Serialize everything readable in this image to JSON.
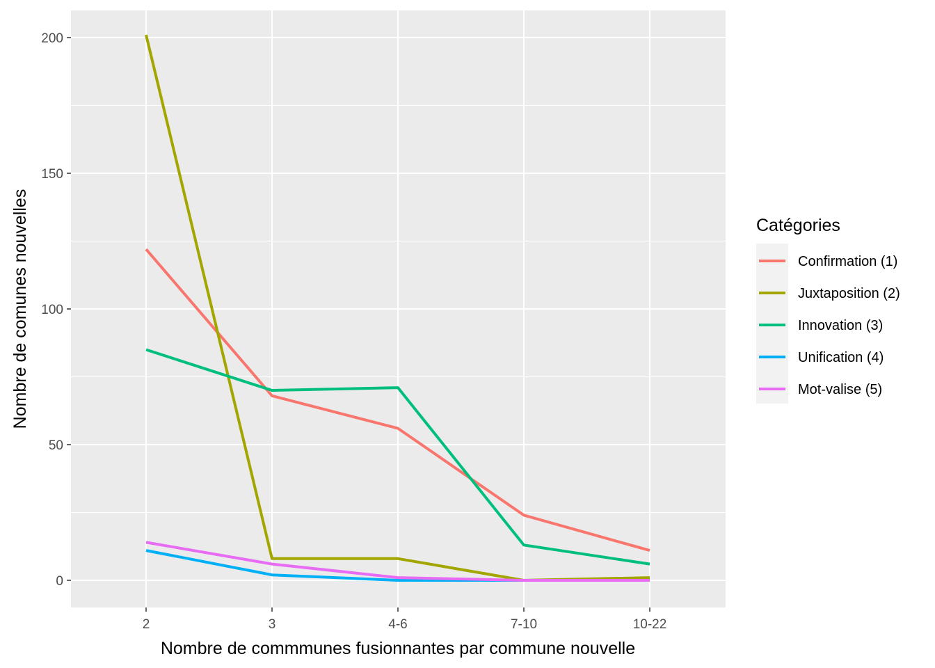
{
  "chart_data": {
    "type": "line",
    "title": "",
    "xlabel": "Nombre de commmunes fusionnantes par commune nouvelle",
    "ylabel": "Nombre de comunes nouvelles",
    "categories": [
      "2",
      "3",
      "4-6",
      "7-10",
      "10-22"
    ],
    "ylim": [
      -10,
      210
    ],
    "yticks": [
      0,
      50,
      100,
      150,
      200
    ],
    "grid": true,
    "legend": {
      "title": "Catégories",
      "placement": "right"
    },
    "series": [
      {
        "name": "Confirmation (1)",
        "color": "#F8766D",
        "values": [
          122,
          68,
          56,
          24,
          11
        ]
      },
      {
        "name": "Juxtaposition (2)",
        "color": "#A3A500",
        "values": [
          201,
          8,
          8,
          0,
          1
        ]
      },
      {
        "name": "Innovation (3)",
        "color": "#00BF7D",
        "values": [
          85,
          70,
          71,
          13,
          6
        ]
      },
      {
        "name": "Unification (4)",
        "color": "#00B0F6",
        "values": [
          11,
          2,
          0,
          0,
          0
        ]
      },
      {
        "name": "Mot-valise (5)",
        "color": "#E76BF3",
        "values": [
          14,
          6,
          1,
          0,
          0
        ]
      }
    ]
  }
}
